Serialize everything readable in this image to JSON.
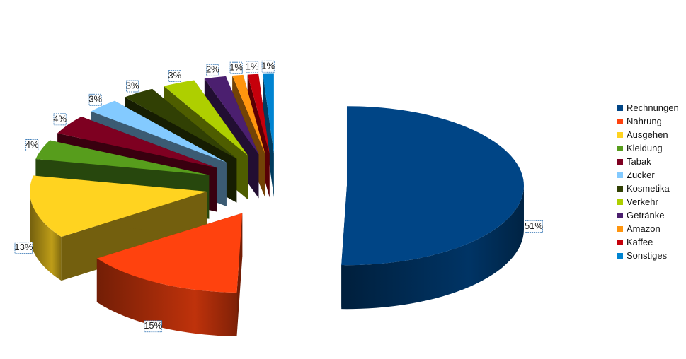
{
  "chart_data": {
    "type": "pie",
    "style": "3d-exploded",
    "legend_position": "right",
    "categories": [
      "Rechnungen",
      "Nahrung",
      "Ausgehen",
      "Kleidung",
      "Tabak",
      "Zucker",
      "Kosmetika",
      "Verkehr",
      "Getränke",
      "Amazon",
      "Kaffee",
      "Sonstiges"
    ],
    "values": [
      51,
      15,
      13,
      4,
      4,
      3,
      3,
      3,
      2,
      1,
      1,
      1
    ],
    "labels": [
      "51%",
      "15%",
      "13%",
      "4%",
      "4%",
      "3%",
      "3%",
      "3%",
      "2%",
      "1%",
      "1%",
      "1%"
    ],
    "colors": [
      "#004586",
      "#ff420e",
      "#ffd320",
      "#579d1c",
      "#7e0021",
      "#83caff",
      "#314004",
      "#aecf00",
      "#4b1f6f",
      "#ff950e",
      "#c5000b",
      "#0084d1"
    ]
  }
}
